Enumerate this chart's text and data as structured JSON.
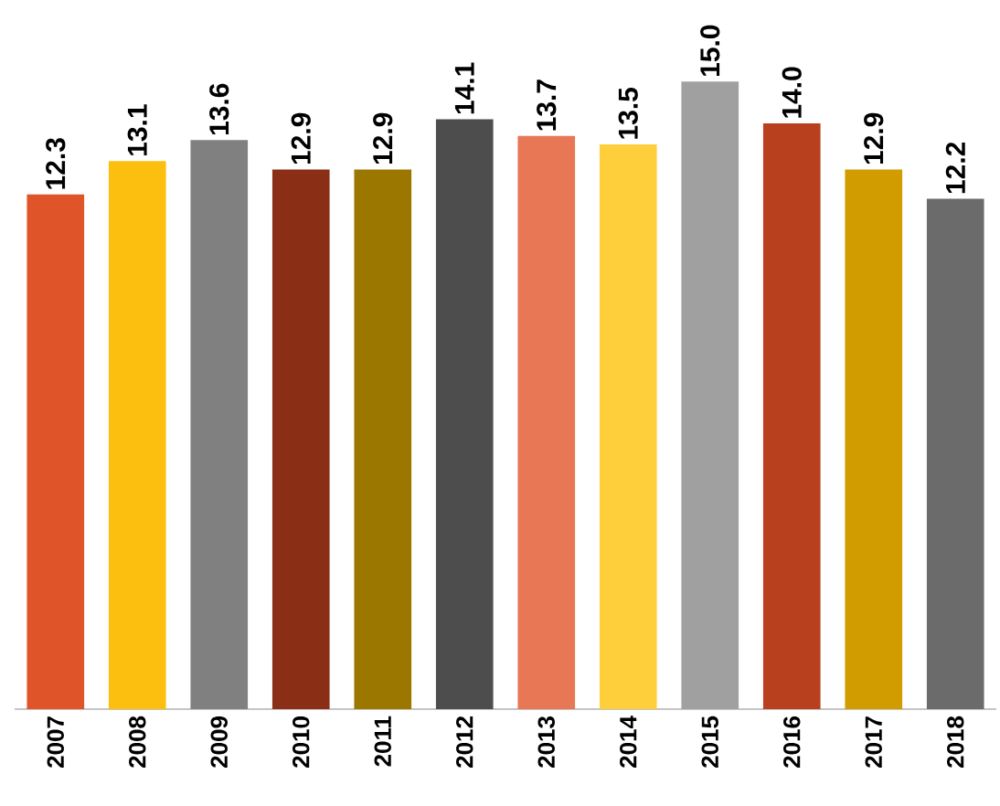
{
  "chart_data": {
    "type": "bar",
    "categories": [
      "2007",
      "2008",
      "2009",
      "2010",
      "2011",
      "2012",
      "2013",
      "2014",
      "2015",
      "2016",
      "2017",
      "2018"
    ],
    "values": [
      12.3,
      13.1,
      13.6,
      12.9,
      12.9,
      14.1,
      13.7,
      13.5,
      15.0,
      14.0,
      12.9,
      12.2
    ],
    "value_labels": [
      "12.3",
      "13.1",
      "13.6",
      "12.9",
      "12.9",
      "14.1",
      "13.7",
      "13.5",
      "15.0",
      "14.0",
      "12.9",
      "12.2"
    ],
    "colors": [
      "#e0542a",
      "#fdbf0f",
      "#808080",
      "#8b2e16",
      "#9c7700",
      "#4d4d4d",
      "#e77755",
      "#fecf3a",
      "#a0a0a0",
      "#b8401e",
      "#d09c00",
      "#6b6b6b"
    ]
  }
}
